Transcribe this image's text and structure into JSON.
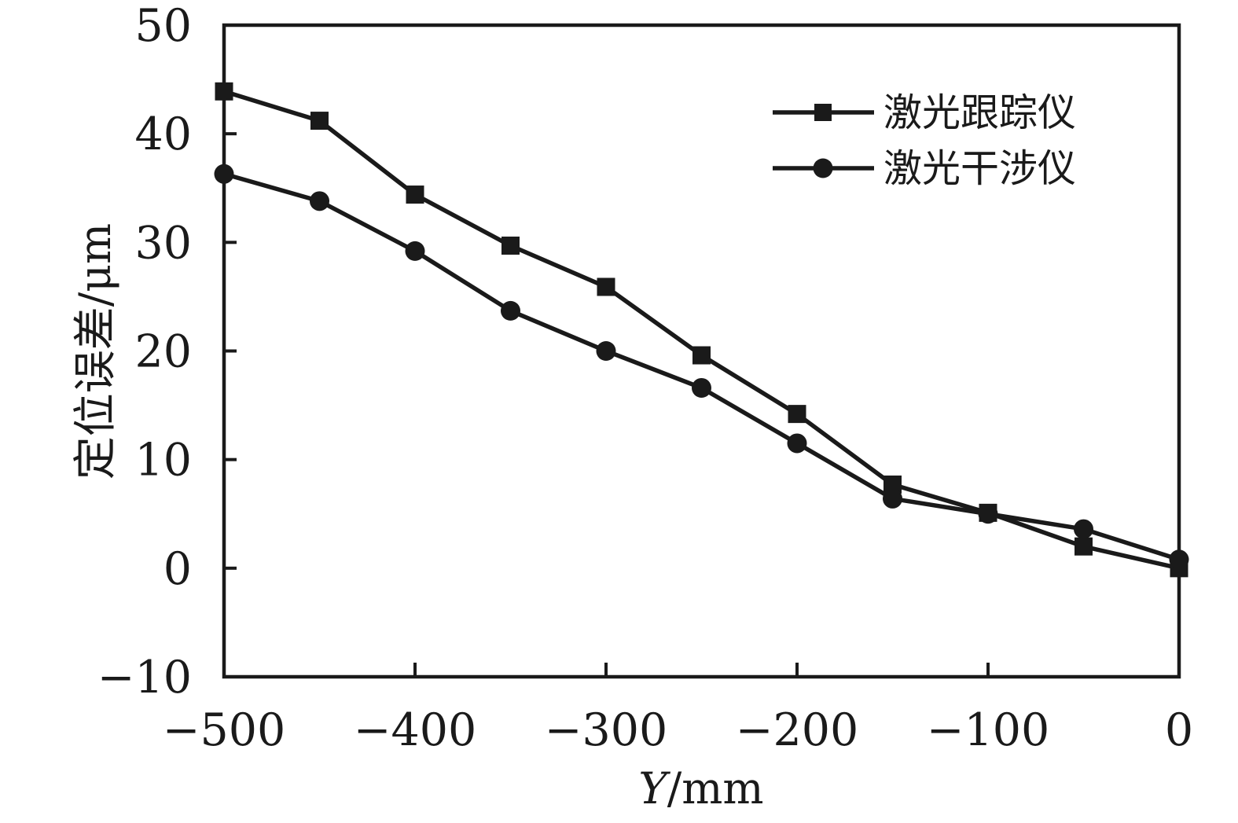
{
  "figure": {
    "background": "#ffffff",
    "ink_color": "#1a1a1a"
  },
  "chart_data": {
    "type": "line",
    "title": "",
    "xlabel_italic": "Y",
    "xlabel_unit": "/mm",
    "ylabel": "定位误差/μm",
    "xlim": [
      -500,
      0
    ],
    "ylim": [
      -10,
      50
    ],
    "grid": false,
    "legend_position": "top-right-inside",
    "x": [
      -500,
      -450,
      -400,
      -350,
      -300,
      -250,
      -200,
      -150,
      -100,
      -50,
      0
    ],
    "x_ticks": [
      {
        "v": -500,
        "label": "−500"
      },
      {
        "v": -400,
        "label": "−400"
      },
      {
        "v": -300,
        "label": "−300"
      },
      {
        "v": -200,
        "label": "−200"
      },
      {
        "v": -100,
        "label": "−100"
      },
      {
        "v": 0,
        "label": "0"
      }
    ],
    "y_ticks": [
      {
        "v": -10,
        "label": "−10"
      },
      {
        "v": 0,
        "label": "0"
      },
      {
        "v": 10,
        "label": "10"
      },
      {
        "v": 20,
        "label": "20"
      },
      {
        "v": 30,
        "label": "30"
      },
      {
        "v": 40,
        "label": "40"
      },
      {
        "v": 50,
        "label": "50"
      }
    ],
    "series": [
      {
        "id": "laser-tracker",
        "name": "激光跟踪仪",
        "marker": "square",
        "color": "#1a1a1a",
        "values": [
          43.9,
          41.2,
          34.4,
          29.7,
          25.9,
          19.6,
          14.2,
          7.7,
          5.1,
          2.0,
          0.0
        ]
      },
      {
        "id": "laser-interferometer",
        "name": "激光干涉仪",
        "marker": "circle",
        "color": "#1a1a1a",
        "values": [
          36.3,
          33.8,
          29.2,
          23.7,
          20.0,
          16.6,
          11.5,
          6.4,
          5.0,
          3.6,
          0.8
        ]
      }
    ]
  }
}
